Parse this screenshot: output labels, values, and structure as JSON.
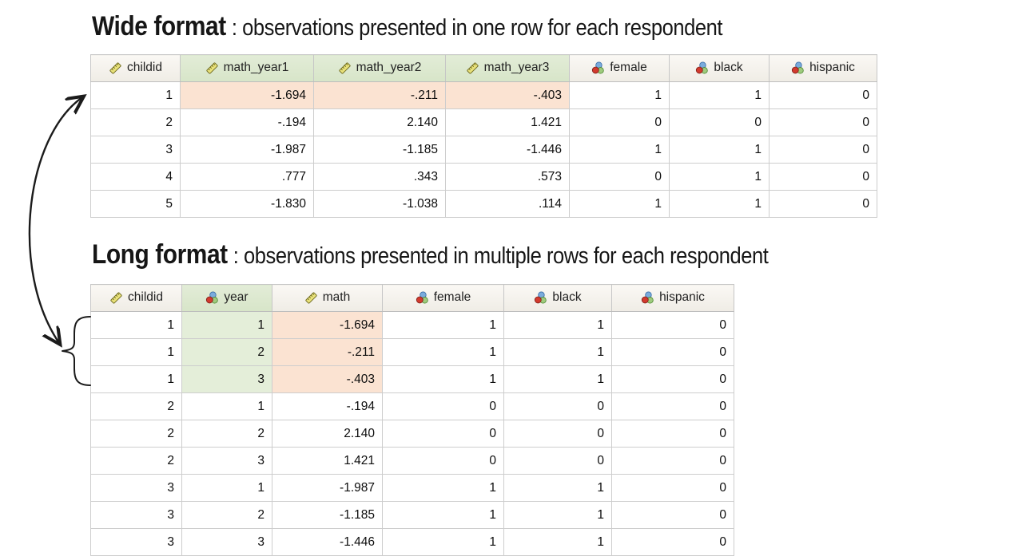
{
  "titles": {
    "wide_bold": "Wide format",
    "wide_rest": ": observations presented in one row for each respondent",
    "long_bold": "Long format",
    "long_rest": ": observations presented in multiple rows for each respondent"
  },
  "colors": {
    "header_plain_top": "#faf8f4",
    "header_plain_bottom": "#efece5",
    "header_green": "#dbe8cd",
    "cell_green": "#e4eed9",
    "cell_peach": "#fbe3d2",
    "grid_border": "#c9c9c9",
    "annotation_ink": "#1b1b1b",
    "ruler_icon_fill": "#e9e27a",
    "nominal_red": "#d23a2e",
    "nominal_green": "#9fcb7e",
    "nominal_blue": "#7aabdc"
  },
  "wide_table": {
    "columns": [
      {
        "label": "childid",
        "type": "scale",
        "green": false
      },
      {
        "label": "math_year1",
        "type": "scale",
        "green": true
      },
      {
        "label": "math_year2",
        "type": "scale",
        "green": true
      },
      {
        "label": "math_year3",
        "type": "scale",
        "green": true
      },
      {
        "label": "female",
        "type": "nominal",
        "green": false
      },
      {
        "label": "black",
        "type": "nominal",
        "green": false
      },
      {
        "label": "hispanic",
        "type": "nominal",
        "green": false
      }
    ],
    "widths": [
      112,
      167,
      165,
      155,
      125,
      125,
      135
    ],
    "rows": [
      [
        "1",
        "-1.694",
        "-.211",
        "-.403",
        "1",
        "1",
        "0"
      ],
      [
        "2",
        "-.194",
        "2.140",
        "1.421",
        "0",
        "0",
        "0"
      ],
      [
        "3",
        "-1.987",
        "-1.185",
        "-1.446",
        "1",
        "1",
        "0"
      ],
      [
        "4",
        ".777",
        ".343",
        ".573",
        "0",
        "1",
        "0"
      ],
      [
        "5",
        "-1.830",
        "-1.038",
        ".114",
        "1",
        "1",
        "0"
      ]
    ],
    "peach_cells": [
      [
        0,
        1
      ],
      [
        0,
        2
      ],
      [
        0,
        3
      ]
    ],
    "green_cells": []
  },
  "long_table": {
    "columns": [
      {
        "label": "childid",
        "type": "scale",
        "green": false
      },
      {
        "label": "year",
        "type": "nominal",
        "green": true
      },
      {
        "label": "math",
        "type": "scale",
        "green": false
      },
      {
        "label": "female",
        "type": "nominal",
        "green": false
      },
      {
        "label": "black",
        "type": "nominal",
        "green": false
      },
      {
        "label": "hispanic",
        "type": "nominal",
        "green": false
      }
    ],
    "widths": [
      114,
      113,
      138,
      152,
      135,
      153
    ],
    "rows": [
      [
        "1",
        "1",
        "-1.694",
        "1",
        "1",
        "0"
      ],
      [
        "1",
        "2",
        "-.211",
        "1",
        "1",
        "0"
      ],
      [
        "1",
        "3",
        "-.403",
        "1",
        "1",
        "0"
      ],
      [
        "2",
        "1",
        "-.194",
        "0",
        "0",
        "0"
      ],
      [
        "2",
        "2",
        "2.140",
        "0",
        "0",
        "0"
      ],
      [
        "2",
        "3",
        "1.421",
        "0",
        "0",
        "0"
      ],
      [
        "3",
        "1",
        "-1.987",
        "1",
        "1",
        "0"
      ],
      [
        "3",
        "2",
        "-1.185",
        "1",
        "1",
        "0"
      ],
      [
        "3",
        "3",
        "-1.446",
        "1",
        "1",
        "0"
      ]
    ],
    "peach_cells": [
      [
        0,
        2
      ],
      [
        1,
        2
      ],
      [
        2,
        2
      ]
    ],
    "green_cells": [
      [
        0,
        1
      ],
      [
        1,
        1
      ],
      [
        2,
        1
      ]
    ]
  },
  "annotations": {
    "arrow_meaning": "reshape between wide row and long rows",
    "brace_meaning": "three long-format rows belong to respondent 1"
  }
}
